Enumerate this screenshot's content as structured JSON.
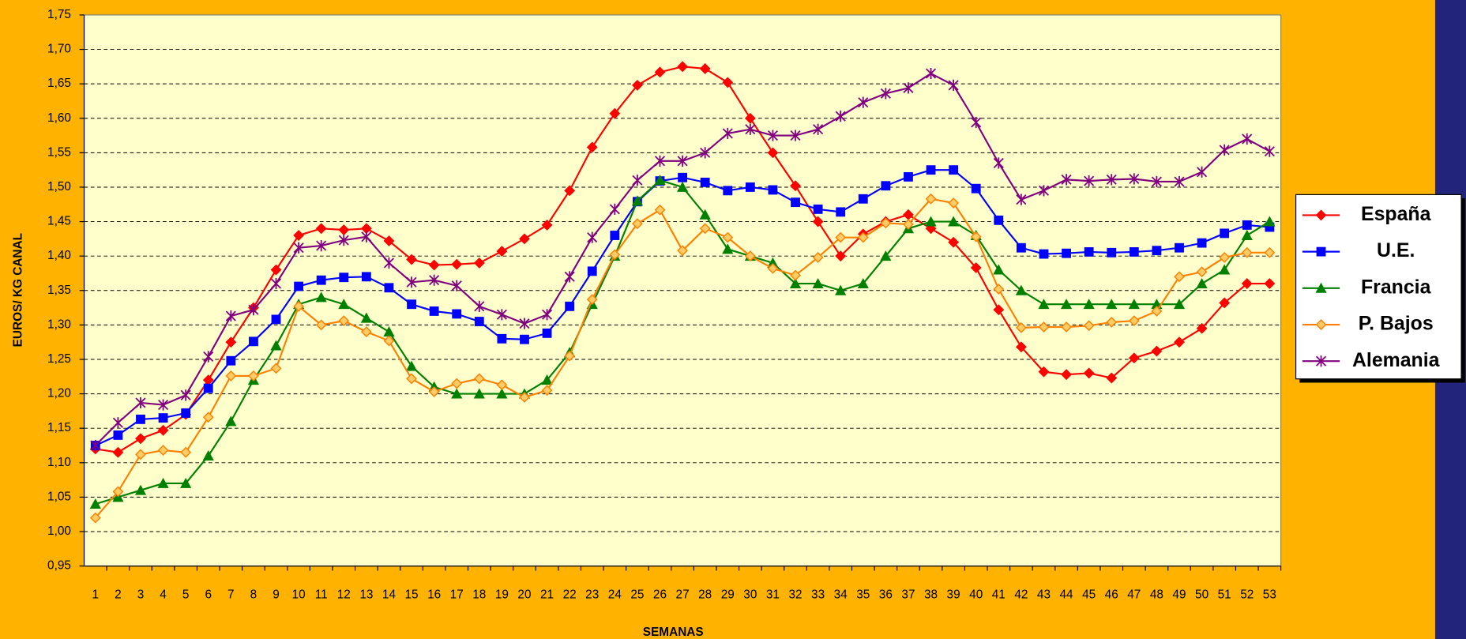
{
  "chart_data": {
    "type": "line",
    "x_label": "SEMANAS",
    "y_label": "EUROS/ KG CANAL",
    "categories": [
      "1",
      "2",
      "3",
      "4",
      "5",
      "6",
      "7",
      "8",
      "9",
      "10",
      "11",
      "12",
      "13",
      "14",
      "15",
      "16",
      "17",
      "18",
      "19",
      "20",
      "21",
      "22",
      "23",
      "24",
      "25",
      "26",
      "27",
      "28",
      "29",
      "30",
      "31",
      "32",
      "33",
      "34",
      "35",
      "36",
      "37",
      "38",
      "39",
      "40",
      "41",
      "42",
      "43",
      "44",
      "45",
      "46",
      "47",
      "48",
      "49",
      "50",
      "51",
      "52",
      "53"
    ],
    "ylim": [
      0.95,
      1.75
    ],
    "yticks": [
      {
        "value": 0.95,
        "label": "0,95"
      },
      {
        "value": 1.0,
        "label": "1,00"
      },
      {
        "value": 1.05,
        "label": "1,05"
      },
      {
        "value": 1.1,
        "label": "1,10"
      },
      {
        "value": 1.15,
        "label": "1,15"
      },
      {
        "value": 1.2,
        "label": "1,20"
      },
      {
        "value": 1.25,
        "label": "1,25"
      },
      {
        "value": 1.3,
        "label": "1,30"
      },
      {
        "value": 1.35,
        "label": "1,35"
      },
      {
        "value": 1.4,
        "label": "1,40"
      },
      {
        "value": 1.45,
        "label": "1,45"
      },
      {
        "value": 1.5,
        "label": "1,50"
      },
      {
        "value": 1.55,
        "label": "1,55"
      },
      {
        "value": 1.6,
        "label": "1,60"
      },
      {
        "value": 1.65,
        "label": "1,65"
      },
      {
        "value": 1.7,
        "label": "1,70"
      },
      {
        "value": 1.75,
        "label": "1,75"
      }
    ],
    "grid": true,
    "legend": "right",
    "series": [
      {
        "name": "España",
        "color": "#FF0000",
        "marker": "diamond",
        "values": [
          1.12,
          1.115,
          1.135,
          1.147,
          1.17,
          1.22,
          1.275,
          1.325,
          1.38,
          1.43,
          1.44,
          1.438,
          1.44,
          1.422,
          1.395,
          1.387,
          1.388,
          1.39,
          1.407,
          1.425,
          1.445,
          1.495,
          1.558,
          1.607,
          1.648,
          1.667,
          1.675,
          1.672,
          1.652,
          1.6,
          1.55,
          1.502,
          1.45,
          1.4,
          1.432,
          1.45,
          1.46,
          1.44,
          1.42,
          1.383,
          1.322,
          1.268,
          1.232,
          1.228,
          1.23,
          1.223,
          1.252,
          1.262,
          1.275,
          1.295,
          1.332,
          1.36,
          1.36
        ]
      },
      {
        "name": "U.E.",
        "color": "#0000FF",
        "marker": "square",
        "values": [
          1.125,
          1.14,
          1.163,
          1.165,
          1.172,
          1.208,
          1.248,
          1.276,
          1.308,
          1.356,
          1.365,
          1.369,
          1.37,
          1.354,
          1.33,
          1.32,
          1.316,
          1.305,
          1.28,
          1.279,
          1.288,
          1.327,
          1.378,
          1.43,
          1.479,
          1.509,
          1.514,
          1.507,
          1.495,
          1.5,
          1.496,
          1.478,
          1.468,
          1.464,
          1.483,
          1.502,
          1.515,
          1.525,
          1.525,
          1.498,
          1.452,
          1.412,
          1.403,
          1.404,
          1.406,
          1.405,
          1.406,
          1.408,
          1.412,
          1.419,
          1.433,
          1.445,
          1.442
        ]
      },
      {
        "name": "Francia",
        "color": "#008000",
        "marker": "triangle",
        "values": [
          1.04,
          1.05,
          1.06,
          1.07,
          1.07,
          1.11,
          1.16,
          1.22,
          1.27,
          1.33,
          1.34,
          1.33,
          1.31,
          1.29,
          1.24,
          1.21,
          1.2,
          1.2,
          1.2,
          1.2,
          1.22,
          1.26,
          1.33,
          1.4,
          1.48,
          1.51,
          1.5,
          1.46,
          1.41,
          1.4,
          1.39,
          1.36,
          1.36,
          1.35,
          1.36,
          1.4,
          1.44,
          1.45,
          1.45,
          1.43,
          1.38,
          1.35,
          1.33,
          1.33,
          1.33,
          1.33,
          1.33,
          1.33,
          1.33,
          1.36,
          1.38,
          1.43,
          1.45
        ]
      },
      {
        "name": "P. Bajos",
        "color": "#FF8000",
        "marker": "diamond-open",
        "values": [
          1.02,
          1.058,
          1.112,
          1.118,
          1.115,
          1.166,
          1.226,
          1.226,
          1.237,
          1.327,
          1.3,
          1.306,
          1.29,
          1.277,
          1.222,
          1.203,
          1.215,
          1.222,
          1.213,
          1.195,
          1.205,
          1.255,
          1.337,
          1.402,
          1.447,
          1.467,
          1.408,
          1.44,
          1.427,
          1.4,
          1.382,
          1.372,
          1.398,
          1.427,
          1.427,
          1.448,
          1.446,
          1.483,
          1.477,
          1.428,
          1.352,
          1.296,
          1.297,
          1.297,
          1.299,
          1.304,
          1.306,
          1.32,
          1.37,
          1.377,
          1.398,
          1.405,
          1.405
        ]
      },
      {
        "name": "Alemania",
        "color": "#800080",
        "marker": "star",
        "values": [
          1.125,
          1.158,
          1.187,
          1.184,
          1.198,
          1.254,
          1.313,
          1.322,
          1.36,
          1.412,
          1.415,
          1.423,
          1.428,
          1.39,
          1.362,
          1.365,
          1.357,
          1.327,
          1.315,
          1.302,
          1.315,
          1.37,
          1.427,
          1.468,
          1.51,
          1.538,
          1.538,
          1.55,
          1.578,
          1.584,
          1.575,
          1.575,
          1.584,
          1.603,
          1.623,
          1.636,
          1.644,
          1.665,
          1.648,
          1.594,
          1.535,
          1.482,
          1.495,
          1.511,
          1.509,
          1.511,
          1.512,
          1.508,
          1.508,
          1.522,
          1.554,
          1.57,
          1.552
        ]
      }
    ]
  }
}
